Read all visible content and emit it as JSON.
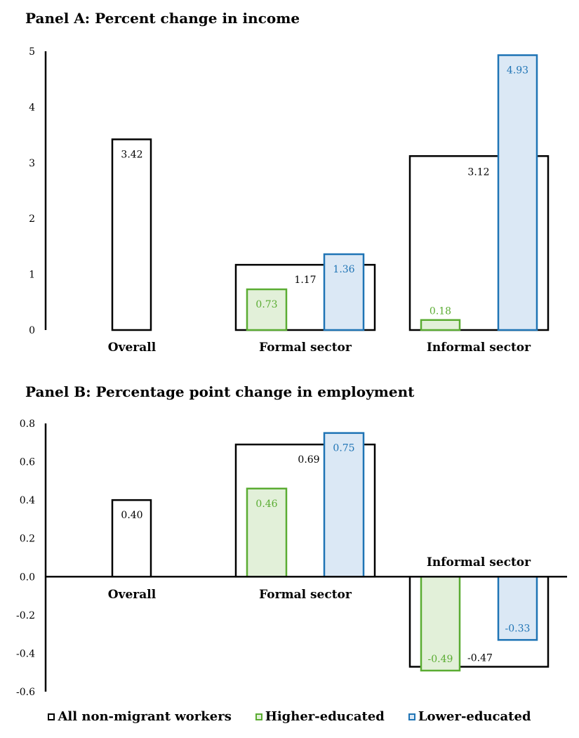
{
  "panels": [
    {
      "title": "Panel A: Percent change in income",
      "yticks": [
        "0",
        "1",
        "2",
        "3",
        "4",
        "5"
      ]
    },
    {
      "title": "Panel B: Percentage point change in employment",
      "yticks": [
        "-0.6",
        "-0.4",
        "-0.2",
        "0.0",
        "0.2",
        "0.4",
        "0.6",
        "0.8"
      ]
    }
  ],
  "legend": [
    {
      "label": "All non-migrant workers",
      "color": "#000000",
      "fill": "#ffffff"
    },
    {
      "label": "Higher-educated",
      "color": "#5aac32",
      "fill": "#e2f0d9"
    },
    {
      "label": "Lower-educated",
      "color": "#1f74b5",
      "fill": "#dbe8f5"
    }
  ],
  "chart_data": [
    {
      "type": "bar",
      "title": "Panel A: Percent change in income",
      "categories": [
        "Overall",
        "Formal sector",
        "Informal sector"
      ],
      "ylim": [
        0,
        5
      ],
      "series": [
        {
          "name": "All non-migrant workers",
          "values": [
            3.42,
            1.17,
            3.12
          ],
          "labels": [
            "3.42",
            "1.17",
            "3.12"
          ]
        },
        {
          "name": "Higher-educated",
          "values": [
            null,
            0.73,
            0.18
          ],
          "labels": [
            "",
            "0.73",
            "0.18"
          ]
        },
        {
          "name": "Lower-educated",
          "values": [
            null,
            1.36,
            4.93
          ],
          "labels": [
            "",
            "1.36",
            "4.93"
          ]
        }
      ]
    },
    {
      "type": "bar",
      "title": "Panel B: Percentage point change in employment",
      "categories": [
        "Overall",
        "Formal sector",
        "Informal sector"
      ],
      "ylim": [
        -0.6,
        0.8
      ],
      "series": [
        {
          "name": "All non-migrant workers",
          "values": [
            0.4,
            0.69,
            -0.47
          ],
          "labels": [
            "0.40",
            "0.69",
            "-0.47"
          ]
        },
        {
          "name": "Higher-educated",
          "values": [
            null,
            0.46,
            -0.49
          ],
          "labels": [
            "",
            "0.46",
            "-0.49"
          ]
        },
        {
          "name": "Lower-educated",
          "values": [
            null,
            0.75,
            -0.33
          ],
          "labels": [
            "",
            "0.75",
            "-0.33"
          ]
        }
      ]
    }
  ]
}
